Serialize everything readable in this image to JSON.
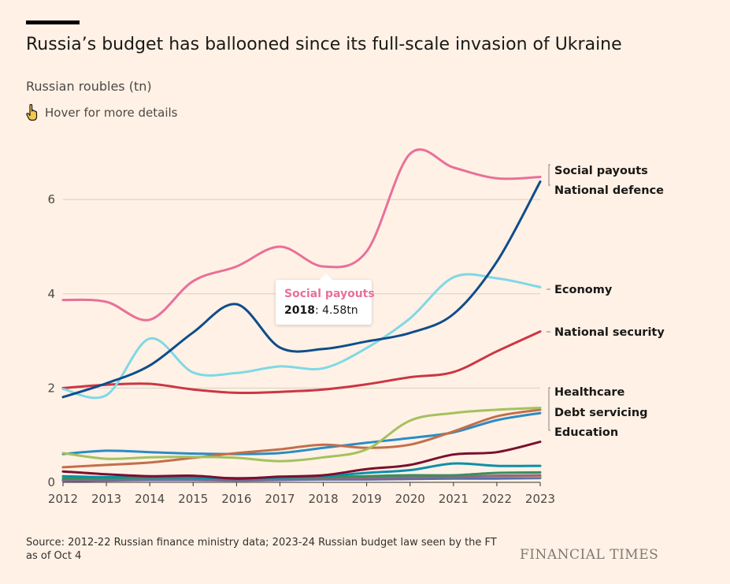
{
  "header": {
    "title": "Russia’s budget has ballooned since its full-scale invasion of Ukraine",
    "subtitle": "Russian roubles (tn)",
    "hover_hint": "Hover for more details"
  },
  "tooltip": {
    "series": "Social payouts",
    "year": "2018",
    "value": "4.58tn",
    "color": "#e8709a"
  },
  "footer": {
    "source": "Source: 2012-22 Russian finance ministry data; 2023-24 Russian budget law seen by the FT as of Oct 4",
    "brand": "FINANCIAL TIMES"
  },
  "chart_data": {
    "type": "line",
    "title": "Russia’s budget has ballooned since its full-scale invasion of Ukraine",
    "ylabel": "Russian roubles (tn)",
    "xlabel": "",
    "x": [
      2012,
      2013,
      2014,
      2015,
      2016,
      2017,
      2018,
      2019,
      2020,
      2021,
      2022,
      2023
    ],
    "ylim": [
      0,
      7
    ],
    "yticks": [
      0,
      2,
      4,
      6
    ],
    "grid": "horizontal",
    "series": [
      {
        "name": "Social payouts",
        "color": "#e8709a",
        "values": [
          3.87,
          3.83,
          3.45,
          4.27,
          4.58,
          5.0,
          4.58,
          4.9,
          6.97,
          6.68,
          6.45,
          6.48
        ]
      },
      {
        "name": "National defence",
        "color": "#0f4d8b",
        "values": [
          1.81,
          2.1,
          2.48,
          3.18,
          3.78,
          2.86,
          2.83,
          2.99,
          3.17,
          3.57,
          4.68,
          6.38
        ]
      },
      {
        "name": "Economy",
        "color": "#7fd8e6",
        "values": [
          1.98,
          1.85,
          3.05,
          2.33,
          2.32,
          2.46,
          2.42,
          2.85,
          3.48,
          4.35,
          4.33,
          4.14
        ]
      },
      {
        "name": "National security",
        "color": "#cc3643",
        "values": [
          2.0,
          2.07,
          2.09,
          1.97,
          1.9,
          1.92,
          1.97,
          2.08,
          2.23,
          2.34,
          2.78,
          3.2
        ]
      },
      {
        "name": "Healthcare",
        "color": "#a4c15e",
        "values": [
          0.62,
          0.5,
          0.53,
          0.54,
          0.52,
          0.45,
          0.53,
          0.7,
          1.31,
          1.47,
          1.54,
          1.58
        ]
      },
      {
        "name": "Debt servicing",
        "color": "#c26f4a",
        "values": [
          0.32,
          0.37,
          0.42,
          0.52,
          0.62,
          0.7,
          0.8,
          0.73,
          0.8,
          1.08,
          1.4,
          1.54
        ]
      },
      {
        "name": "Education",
        "color": "#2b8cc4",
        "values": [
          0.6,
          0.67,
          0.64,
          0.61,
          0.6,
          0.62,
          0.73,
          0.84,
          0.94,
          1.06,
          1.32,
          1.47
        ]
      },
      {
        "name": "",
        "color": "#7a0f2e",
        "values": [
          0.23,
          0.17,
          0.13,
          0.14,
          0.08,
          0.12,
          0.15,
          0.28,
          0.37,
          0.59,
          0.64,
          0.86
        ]
      },
      {
        "name": "",
        "color": "#0d8fa8",
        "values": [
          0.13,
          0.11,
          0.11,
          0.1,
          0.08,
          0.1,
          0.13,
          0.2,
          0.26,
          0.4,
          0.35,
          0.35
        ]
      },
      {
        "name": "",
        "color": "#3a8f5c",
        "values": [
          0.08,
          0.09,
          0.1,
          0.1,
          0.09,
          0.1,
          0.11,
          0.13,
          0.15,
          0.15,
          0.2,
          0.21
        ]
      },
      {
        "name": "",
        "color": "#8a6a86",
        "values": [
          0.05,
          0.06,
          0.07,
          0.07,
          0.06,
          0.07,
          0.08,
          0.09,
          0.11,
          0.12,
          0.14,
          0.15
        ]
      },
      {
        "name": "",
        "color": "#c98b5a",
        "values": [
          0.08,
          0.08,
          0.08,
          0.08,
          0.07,
          0.08,
          0.09,
          0.1,
          0.11,
          0.12,
          0.13,
          0.12
        ]
      },
      {
        "name": "",
        "color": "#5a6ea8",
        "values": [
          0.03,
          0.04,
          0.05,
          0.05,
          0.04,
          0.05,
          0.06,
          0.06,
          0.07,
          0.08,
          0.08,
          0.09
        ]
      }
    ],
    "labels": [
      "Social payouts",
      "National defence",
      "Economy",
      "National security",
      "Healthcare",
      "Debt servicing",
      "Education"
    ],
    "annotation": {
      "series": "Social payouts",
      "x": 2018,
      "y": 4.58,
      "text": "4.58tn"
    }
  }
}
